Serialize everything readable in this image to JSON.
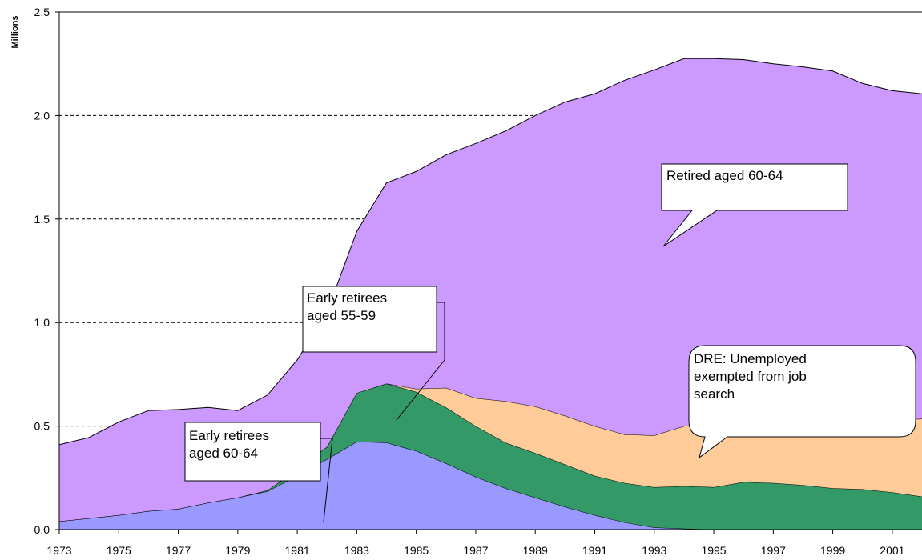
{
  "chart_data": {
    "type": "stacked-area",
    "y_axis_label": "Millions",
    "x": [
      1973,
      1974,
      1975,
      1976,
      1977,
      1978,
      1979,
      1980,
      1981,
      1982,
      1983,
      1984,
      1985,
      1986,
      1987,
      1988,
      1989,
      1990,
      1991,
      1992,
      1993,
      1994,
      1995,
      1996,
      1997,
      1998,
      1999,
      2000,
      2001,
      2002
    ],
    "xlim": [
      1973,
      2002
    ],
    "xticks": [
      1973,
      1975,
      1977,
      1979,
      1981,
      1983,
      1985,
      1987,
      1989,
      1991,
      1993,
      1995,
      1997,
      1999,
      2001
    ],
    "ylim": [
      0,
      2.5
    ],
    "yticks": [
      {
        "value": 0,
        "label": "0.0"
      },
      {
        "value": 0.5,
        "label": "0.5"
      },
      {
        "value": 1,
        "label": "1.0"
      },
      {
        "value": 1.5,
        "label": "1.5"
      },
      {
        "value": 2,
        "label": "2.0"
      },
      {
        "value": 2.5,
        "label": "2.5"
      }
    ],
    "grid": true,
    "series": [
      {
        "color": "#9999ff",
        "values": [
          0.04,
          0.055,
          0.07,
          0.09,
          0.1,
          0.13,
          0.155,
          0.185,
          0.26,
          0.34,
          0.425,
          0.42,
          0.38,
          0.32,
          0.255,
          0.2,
          0.155,
          0.11,
          0.07,
          0.035,
          0.01,
          0.005,
          0,
          0,
          0,
          0,
          0,
          0,
          0,
          0
        ]
      },
      {
        "color": "#339966",
        "values": [
          0,
          0,
          0,
          0,
          0,
          0,
          0,
          0.005,
          0.03,
          0.06,
          0.235,
          0.285,
          0.285,
          0.27,
          0.245,
          0.22,
          0.215,
          0.205,
          0.19,
          0.19,
          0.195,
          0.205,
          0.205,
          0.23,
          0.225,
          0.215,
          0.2,
          0.195,
          0.18,
          0.16
        ]
      },
      {
        "color": "#ffcc99",
        "values": [
          0,
          0,
          0,
          0,
          0,
          0,
          0,
          0,
          0,
          0,
          0,
          0,
          0.015,
          0.095,
          0.135,
          0.2,
          0.225,
          0.235,
          0.24,
          0.235,
          0.25,
          0.29,
          0.305,
          0.29,
          0.295,
          0.305,
          0.325,
          0.335,
          0.35,
          0.375
        ]
      },
      {
        "color": "#cc99ff",
        "values": [
          0.37,
          0.39,
          0.45,
          0.485,
          0.48,
          0.46,
          0.42,
          0.46,
          0.53,
          0.65,
          0.78,
          0.97,
          1.05,
          1.125,
          1.23,
          1.305,
          1.405,
          1.515,
          1.605,
          1.71,
          1.765,
          1.775,
          1.765,
          1.75,
          1.73,
          1.715,
          1.69,
          1.625,
          1.59,
          1.57
        ]
      }
    ],
    "annotations": [
      {
        "lines": [
          "Retired aged 60-64"
        ]
      },
      {
        "lines": [
          "Early retirees",
          "aged 55-59"
        ]
      },
      {
        "lines": [
          "Early retirees",
          "aged 60-64"
        ]
      },
      {
        "lines": [
          "DRE: Unemployed",
          "exempted from job",
          "search"
        ]
      }
    ]
  }
}
